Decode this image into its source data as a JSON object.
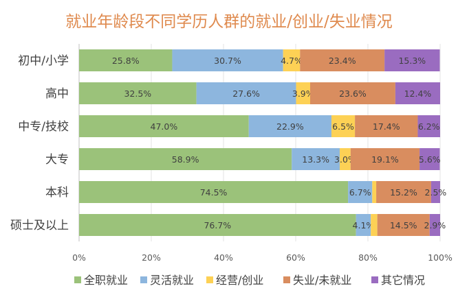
{
  "chart_data": {
    "type": "bar",
    "orientation": "horizontal",
    "stacked": "percent",
    "title": "就业年龄段不同学历人群的就业/创业/失业情况",
    "categories": [
      "初中/小学",
      "高中",
      "中专/技校",
      "大专",
      "本科",
      "硕士及以上"
    ],
    "series": [
      {
        "name": "全职就业",
        "color": "#9bc27a",
        "values": [
          25.8,
          32.5,
          47.0,
          58.9,
          74.5,
          76.7
        ]
      },
      {
        "name": "灵活就业",
        "color": "#8db6de",
        "values": [
          30.7,
          27.6,
          22.9,
          13.3,
          6.7,
          4.1
        ]
      },
      {
        "name": "经营/创业",
        "color": "#fdd155",
        "values": [
          4.7,
          3.9,
          6.5,
          3.0,
          1.1,
          1.8
        ]
      },
      {
        "name": "失业/未就业",
        "color": "#d98d5f",
        "values": [
          23.4,
          23.6,
          17.4,
          19.1,
          15.2,
          14.5
        ]
      },
      {
        "name": "其它情况",
        "color": "#9a6cc0",
        "values": [
          15.3,
          12.4,
          6.2,
          5.6,
          2.5,
          2.9
        ]
      }
    ],
    "data_labels": [
      [
        "25.8%",
        "30.7%",
        "4.7%",
        "23.4%",
        "15.3%"
      ],
      [
        "32.5%",
        "27.6%",
        "3.9%",
        "23.6%",
        "12.4%"
      ],
      [
        "47.0%",
        "22.9%",
        "6.5%",
        "17.4%",
        "6.2%"
      ],
      [
        "58.9%",
        "13.3%",
        "3.0%",
        "19.1%",
        "5.6%"
      ],
      [
        "74.5%",
        "6.7%",
        "",
        "15.2%",
        "2.5%"
      ],
      [
        "76.7%",
        "4.1%",
        "",
        "14.5%",
        "2.9%"
      ]
    ],
    "xlim": [
      0,
      100
    ],
    "xticks": [
      "0%",
      "20%",
      "40%",
      "60%",
      "80%",
      "100%"
    ],
    "grid": true,
    "legend": "bottom",
    "title_color": "#df8a4e"
  }
}
